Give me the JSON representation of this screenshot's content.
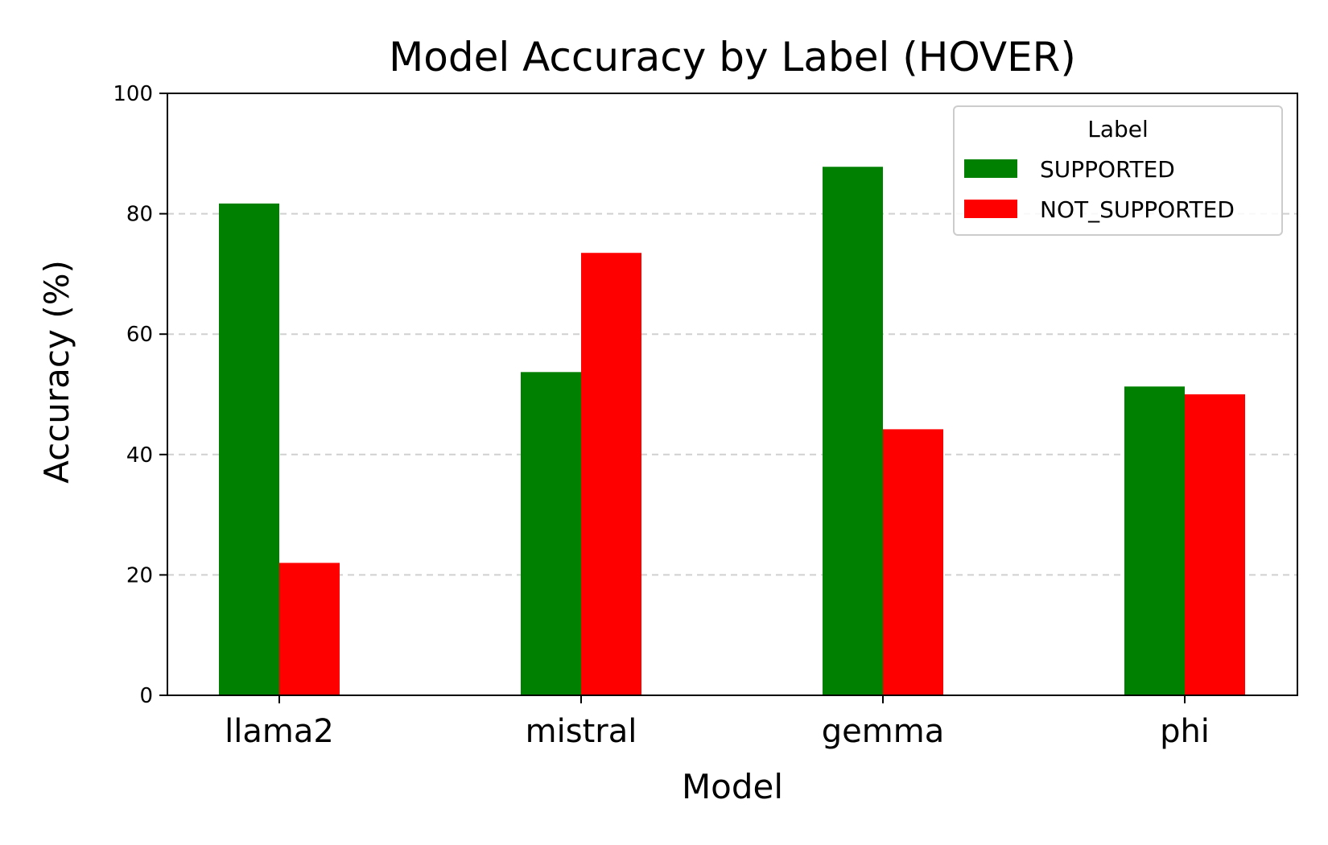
{
  "chart_data": {
    "type": "bar",
    "title": "Model Accuracy by Label (HOVER)",
    "xlabel": "Model",
    "ylabel": "Accuracy (%)",
    "categories": [
      "llama2",
      "mistral",
      "gemma",
      "phi"
    ],
    "series": [
      {
        "name": "SUPPORTED",
        "color": "#008000",
        "values": [
          81.7,
          53.7,
          87.8,
          51.3
        ]
      },
      {
        "name": "NOT_SUPPORTED",
        "color": "#ff0000",
        "values": [
          22.0,
          73.5,
          44.2,
          50.0
        ]
      }
    ],
    "ylim": [
      0,
      100
    ],
    "yticks": [
      0,
      20,
      40,
      60,
      80,
      100
    ],
    "grid": "y-dashed",
    "legend": {
      "title": "Label",
      "placement": "top-right"
    }
  }
}
